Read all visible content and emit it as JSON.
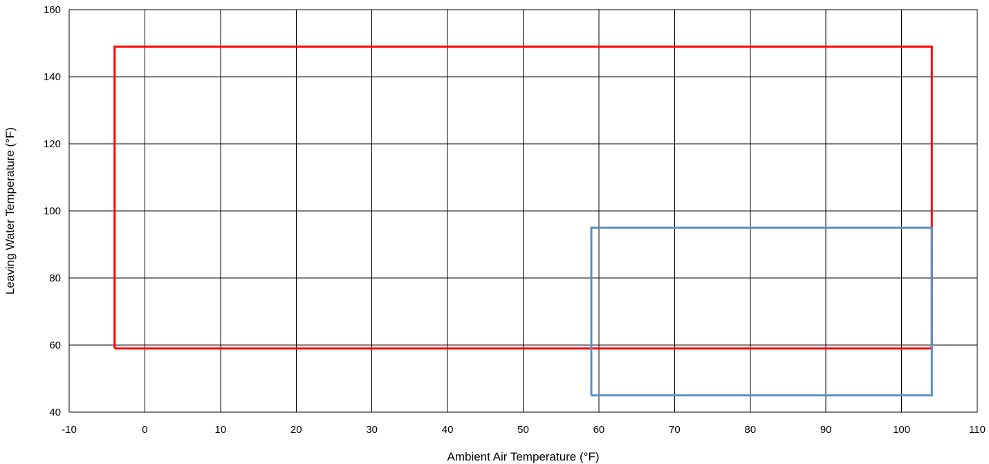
{
  "chart_data": {
    "type": "line",
    "title": "",
    "xlabel": "Ambient Air Temperature (°F)",
    "ylabel": "Leaving Water Temperature (°F)",
    "xlim": [
      -10,
      110
    ],
    "ylim": [
      40,
      160
    ],
    "xticks": [
      -10,
      0,
      10,
      20,
      30,
      40,
      50,
      60,
      70,
      80,
      90,
      100,
      110
    ],
    "yticks": [
      40,
      60,
      80,
      100,
      120,
      140,
      160
    ],
    "grid": true,
    "legend": "none",
    "series": [
      {
        "color": "#ff0000",
        "points": [
          [
            -4,
            59
          ],
          [
            -4,
            149
          ],
          [
            104,
            149
          ],
          [
            104,
            59
          ],
          [
            -4,
            59
          ]
        ]
      },
      {
        "color": "#5b8fc7",
        "points": [
          [
            59,
            45
          ],
          [
            59,
            95
          ],
          [
            104,
            95
          ],
          [
            104,
            45
          ],
          [
            59,
            45
          ]
        ]
      }
    ]
  }
}
